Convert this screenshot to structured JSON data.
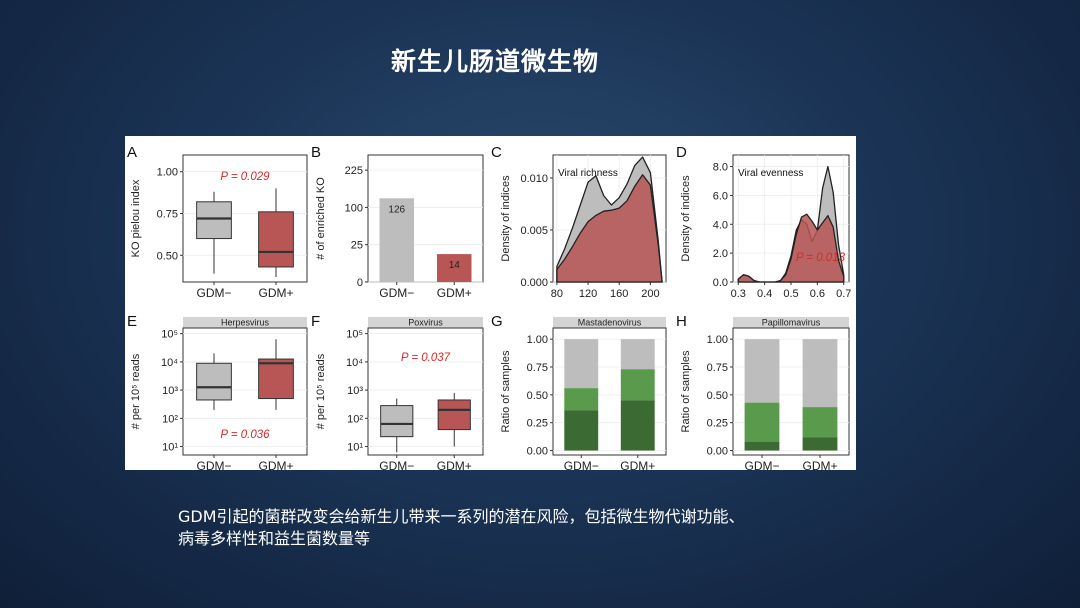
{
  "slide": {
    "title": "新生儿肠道微生物",
    "caption": [
      "GDM引起的菌群改变会给新生儿带来一系列的潜在风险，包括微生物代谢功能、",
      "病毒多样性和益生菌数量等"
    ]
  },
  "colors": {
    "gdm_minus": "#bdbdbd",
    "gdm_plus": "#b85555",
    "pvalue": "#d62a2a",
    "strip": "#d4d4d4",
    "green_dark": "#3b6b32",
    "green_light": "#5a9a4c"
  },
  "chart_data": [
    {
      "panel": "A",
      "type": "box",
      "ylabel": "KO pielou index",
      "categories": [
        "GDM−",
        "GDM+"
      ],
      "yticks": [
        0.5,
        0.75,
        1.0
      ],
      "ytick_labels": [
        "0.50",
        "0.75",
        "1.00"
      ],
      "ylim": [
        0.34,
        1.1
      ],
      "annotation": "P = 0.029",
      "boxes": [
        {
          "min": 0.39,
          "q1": 0.6,
          "median": 0.72,
          "q3": 0.82,
          "max": 0.88
        },
        {
          "min": 0.37,
          "q1": 0.43,
          "median": 0.52,
          "q3": 0.76,
          "max": 0.9
        }
      ]
    },
    {
      "panel": "B",
      "type": "bar",
      "ylabel": "# of enriched KO",
      "categories": [
        "GDM−",
        "GDM+"
      ],
      "values": [
        126,
        14
      ],
      "value_labels": [
        "126",
        "14"
      ],
      "yticks": [
        0,
        25,
        100,
        225
      ],
      "ytick_labels": [
        "0",
        "25",
        "100",
        "225"
      ],
      "scale": "sqrt",
      "ylim": [
        0,
        290
      ]
    },
    {
      "panel": "C",
      "type": "area",
      "ylabel": "Density of indices",
      "annotation": "Viral richness",
      "xticks": [
        80,
        120,
        160,
        200
      ],
      "xtick_labels": [
        "80",
        "120",
        "160",
        "200"
      ],
      "xlim": [
        75,
        220
      ],
      "yticks": [
        0,
        0.005,
        0.01
      ],
      "ytick_labels": [
        "0.000",
        "0.005",
        "0.010"
      ],
      "ylim": [
        0,
        0.0122
      ],
      "series": [
        {
          "x": [
            80,
            90,
            100,
            110,
            120,
            130,
            140,
            150,
            160,
            170,
            180,
            190,
            200,
            210,
            215
          ],
          "y": [
            0.0015,
            0.0032,
            0.0052,
            0.0074,
            0.0096,
            0.0102,
            0.0083,
            0.0074,
            0.0081,
            0.0094,
            0.0112,
            0.012,
            0.0105,
            0.004,
            0.0
          ]
        },
        {
          "x": [
            80,
            90,
            100,
            110,
            120,
            130,
            140,
            150,
            160,
            170,
            180,
            190,
            200,
            210,
            215
          ],
          "y": [
            0.0012,
            0.0022,
            0.0034,
            0.0047,
            0.0058,
            0.0064,
            0.0068,
            0.0069,
            0.0071,
            0.0078,
            0.0092,
            0.0103,
            0.0093,
            0.0036,
            0.0
          ]
        }
      ]
    },
    {
      "panel": "D",
      "type": "area",
      "ylabel": "Density of indices",
      "annotation": "Viral evenness",
      "pvalue": "P = 0.013",
      "xticks": [
        0.3,
        0.4,
        0.5,
        0.6,
        0.7
      ],
      "xtick_labels": [
        "0.3",
        "0.4",
        "0.5",
        "0.6",
        "0.7"
      ],
      "xlim": [
        0.28,
        0.72
      ],
      "yticks": [
        0,
        2,
        4,
        6,
        8
      ],
      "ytick_labels": [
        "0.0",
        "2.0",
        "4.0",
        "6.0",
        "8.0"
      ],
      "ylim": [
        0,
        8.8
      ],
      "series": [
        {
          "x": [
            0.3,
            0.32,
            0.34,
            0.36,
            0.38,
            0.4,
            0.42,
            0.44,
            0.46,
            0.48,
            0.5,
            0.52,
            0.54,
            0.56,
            0.58,
            0.6,
            0.62,
            0.64,
            0.66,
            0.68,
            0.7
          ],
          "y": [
            0.2,
            0.5,
            0.4,
            0.1,
            0.0,
            0.0,
            0.0,
            0.0,
            0.1,
            0.6,
            1.8,
            3.6,
            4.3,
            4.0,
            2.8,
            3.6,
            6.5,
            8.0,
            6.2,
            2.6,
            0.5
          ]
        },
        {
          "x": [
            0.3,
            0.32,
            0.34,
            0.36,
            0.38,
            0.4,
            0.42,
            0.44,
            0.46,
            0.48,
            0.5,
            0.52,
            0.54,
            0.56,
            0.58,
            0.6,
            0.62,
            0.64,
            0.66,
            0.68,
            0.7
          ],
          "y": [
            0.2,
            0.5,
            0.4,
            0.1,
            0.0,
            0.0,
            0.0,
            0.0,
            0.1,
            0.5,
            1.6,
            3.3,
            4.5,
            4.7,
            4.2,
            3.6,
            4.1,
            4.6,
            3.8,
            1.5,
            0.4
          ]
        }
      ]
    },
    {
      "panel": "E",
      "type": "box",
      "strip": "Herpesvirus",
      "ylabel": "# per 10⁵ reads",
      "categories": [
        "GDM−",
        "GDM+"
      ],
      "scale": "log10",
      "yticks": [
        1,
        2,
        3,
        4,
        5
      ],
      "ytick_labels": [
        "10¹",
        "10²",
        "10³",
        "10⁴",
        "10⁵"
      ],
      "ylim": [
        0.7,
        5.2
      ],
      "annotation": "P = 0.036",
      "boxes": [
        {
          "min": 2.3,
          "q1": 2.65,
          "median": 3.1,
          "q3": 3.95,
          "max": 4.3
        },
        {
          "min": 2.3,
          "q1": 2.7,
          "median": 3.95,
          "q3": 4.1,
          "max": 4.8
        }
      ]
    },
    {
      "panel": "F",
      "type": "box",
      "strip": "Poxvirus",
      "ylabel": "# per 10⁵ reads",
      "categories": [
        "GDM−",
        "GDM+"
      ],
      "scale": "log10",
      "yticks": [
        1,
        2,
        3,
        4,
        5
      ],
      "ytick_labels": [
        "10¹",
        "10²",
        "10³",
        "10⁴",
        "10⁵"
      ],
      "ylim": [
        0.7,
        5.2
      ],
      "annotation": "P = 0.037",
      "boxes": [
        {
          "min": 0.8,
          "q1": 1.35,
          "median": 1.8,
          "q3": 2.45,
          "max": 2.7
        },
        {
          "min": 1.0,
          "q1": 1.6,
          "median": 2.3,
          "q3": 2.65,
          "max": 2.9
        }
      ]
    },
    {
      "panel": "G",
      "type": "bar",
      "strip": "Mastadenovirus",
      "ylabel": "Ratio of samples",
      "categories": [
        "GDM−",
        "GDM+"
      ],
      "yticks": [
        0,
        0.25,
        0.5,
        0.75,
        1.0
      ],
      "ytick_labels": [
        "0.00",
        "0.25",
        "0.50",
        "0.75",
        "1.00"
      ],
      "ylim": [
        -0.04,
        1.1
      ],
      "stacks": [
        {
          "dark": 0.36,
          "light": 0.2
        },
        {
          "dark": 0.45,
          "light": 0.28
        }
      ]
    },
    {
      "panel": "H",
      "type": "bar",
      "strip": "Papillomavirus",
      "ylabel": "Ratio of samples",
      "categories": [
        "GDM−",
        "GDM+"
      ],
      "yticks": [
        0,
        0.25,
        0.5,
        0.75,
        1.0
      ],
      "ytick_labels": [
        "0.00",
        "0.25",
        "0.50",
        "0.75",
        "1.00"
      ],
      "ylim": [
        -0.04,
        1.1
      ],
      "stacks": [
        {
          "dark": 0.08,
          "light": 0.35
        },
        {
          "dark": 0.12,
          "light": 0.27
        }
      ]
    }
  ]
}
